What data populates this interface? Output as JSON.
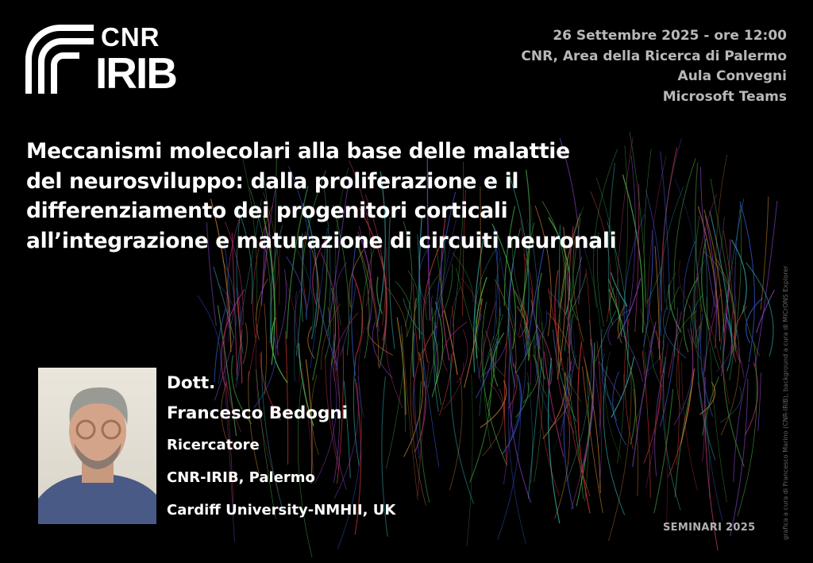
{
  "logo": {
    "line1": "CNR",
    "line2": "IRIB"
  },
  "event": {
    "date": "26 Settembre 2025 - ore 12:00",
    "venue": "CNR, Area della Ricerca di Palermo",
    "room": "Aula Convegni",
    "online": "Microsoft Teams"
  },
  "title": {
    "lines": [
      "Meccanismi molecolari alla base delle malattie",
      "del neurosviluppo: dalla proliferazione e il",
      "differenziamento dei progenitori corticali",
      "all’integrazione e maturazione di circuiti neuronali"
    ]
  },
  "speaker": {
    "honorific": "Dott.",
    "name": "Francesco Bedogni",
    "role": "Ricercatore",
    "affiliation1": "CNR-IRIB, Palermo",
    "affiliation2": "Cardiff University-NMHII, UK"
  },
  "series": "SEMINARI 2025",
  "credit": "grafica a cura di Francesco Marino (CNR-IRIB), background a cura di MICrONS Explorer",
  "colors": {
    "background": "#000000",
    "text": "#ffffff",
    "secondary_text": "#b8b8b8"
  }
}
